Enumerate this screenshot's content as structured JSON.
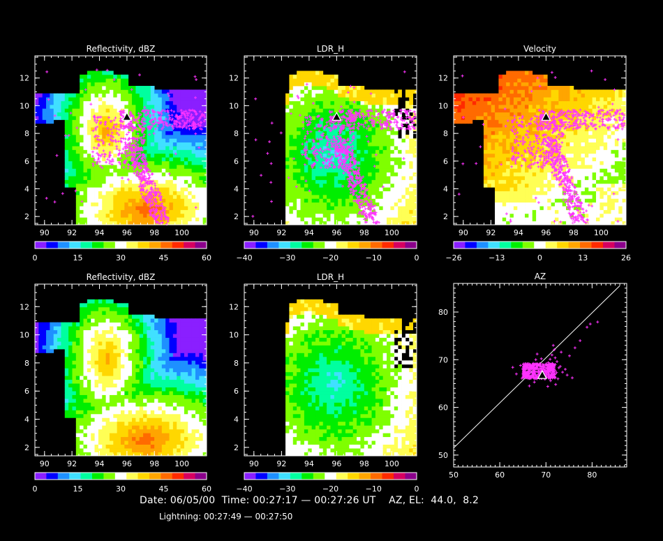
{
  "footer": {
    "date_line": "Date: 06/05/00  Time: 00:27:17 — 00:27:26 UT    AZ, EL:  44.0,  8.2",
    "lightning_line": "Lightning: 00:27:49 — 00:27:50"
  },
  "colors": {
    "background": "#000000",
    "axes": "#ffffff",
    "lightning": "#ff33ff",
    "colorbar_scale": [
      "#8a1fff",
      "#0000ff",
      "#1e90ff",
      "#40e0ff",
      "#00ff9f",
      "#00ee00",
      "#7fff00",
      "#ffffff",
      "#ffff55",
      "#ffd700",
      "#ffa500",
      "#ff6a00",
      "#ff2a00",
      "#d60060",
      "#8b008b"
    ]
  },
  "chart_data": [
    {
      "id": "reflectivity-top",
      "type": "heatmap",
      "title": "Reflectivity, dBZ",
      "xticks": [
        90,
        92,
        94,
        96,
        98,
        100
      ],
      "yticks": [
        2,
        4,
        6,
        8,
        10,
        12
      ],
      "xlim": [
        89.3,
        101.8
      ],
      "ylim": [
        1.4,
        13.6
      ],
      "colorbar": {
        "ticks": [
          "0",
          "15",
          "30",
          "45",
          "60"
        ]
      },
      "lightning_overlay": true,
      "station_marker": {
        "x": 96,
        "y": 9.2
      }
    },
    {
      "id": "ldr-top",
      "type": "heatmap",
      "title": "LDR_H",
      "xticks": [
        90,
        92,
        94,
        96,
        98,
        100
      ],
      "yticks": [
        2,
        4,
        6,
        8,
        10,
        12
      ],
      "xlim": [
        89.3,
        101.8
      ],
      "ylim": [
        1.4,
        13.6
      ],
      "colorbar": {
        "ticks": [
          "−40",
          "−30",
          "−20",
          "−10",
          "0"
        ]
      },
      "lightning_overlay": true,
      "station_marker": {
        "x": 96,
        "y": 9.2
      }
    },
    {
      "id": "velocity-top",
      "type": "heatmap",
      "title": "Velocity",
      "xticks": [
        90,
        92,
        94,
        96,
        98,
        100
      ],
      "yticks": [
        2,
        4,
        6,
        8,
        10,
        12
      ],
      "xlim": [
        89.3,
        101.8
      ],
      "ylim": [
        1.4,
        13.6
      ],
      "colorbar": {
        "ticks": [
          "−26",
          "−13",
          "0",
          "13",
          "26"
        ]
      },
      "lightning_overlay": true,
      "station_marker": {
        "x": 96,
        "y": 9.2
      }
    },
    {
      "id": "reflectivity-bottom",
      "type": "heatmap",
      "title": "Reflectivity, dBZ",
      "xticks": [
        90,
        92,
        94,
        96,
        98,
        100
      ],
      "yticks": [
        2,
        4,
        6,
        8,
        10,
        12
      ],
      "xlim": [
        89.3,
        101.8
      ],
      "ylim": [
        1.4,
        13.6
      ],
      "colorbar": {
        "ticks": [
          "0",
          "15",
          "30",
          "45",
          "60"
        ]
      },
      "lightning_overlay": false
    },
    {
      "id": "ldr-bottom",
      "type": "heatmap",
      "title": "LDR_H",
      "xticks": [
        90,
        92,
        94,
        96,
        98,
        100
      ],
      "yticks": [
        2,
        4,
        6,
        8,
        10,
        12
      ],
      "xlim": [
        89.3,
        101.8
      ],
      "ylim": [
        1.4,
        13.6
      ],
      "colorbar": {
        "ticks": [
          "−40",
          "−30",
          "−20",
          "−10",
          "0"
        ]
      },
      "lightning_overlay": false
    },
    {
      "id": "az-scatter",
      "type": "scatter",
      "title": "AZ",
      "xticks": [
        50,
        60,
        70,
        80
      ],
      "yticks": [
        50,
        60,
        70,
        80
      ],
      "xlim": [
        50,
        87.5
      ],
      "ylim": [
        47.5,
        86
      ],
      "reference_line": [
        [
          50,
          51.5
        ],
        [
          86,
          85.5
        ]
      ],
      "station_marker": {
        "x": 69.2,
        "y": 66.8
      },
      "points": [
        [
          64.5,
          68.8
        ],
        [
          65.2,
          68.2
        ],
        [
          65.8,
          68.6
        ],
        [
          66.3,
          67.9
        ],
        [
          66.9,
          68.4
        ],
        [
          67.4,
          67.6
        ],
        [
          67.9,
          68.1
        ],
        [
          68.3,
          67.3
        ],
        [
          68.8,
          66.7
        ],
        [
          69.3,
          67.9
        ],
        [
          69.7,
          67.1
        ],
        [
          70.2,
          66.4
        ],
        [
          70.6,
          67.5
        ],
        [
          71.1,
          66.8
        ],
        [
          71.5,
          67.9
        ],
        [
          71.9,
          66.2
        ],
        [
          72.3,
          67.3
        ],
        [
          72.8,
          68.3
        ],
        [
          71.4,
          69.2
        ],
        [
          70.9,
          70.1
        ],
        [
          71.3,
          71.0
        ],
        [
          71.8,
          72.1
        ],
        [
          71.6,
          73.0
        ],
        [
          72.4,
          69.6
        ],
        [
          73.1,
          68.6
        ],
        [
          73.6,
          67.4
        ],
        [
          72.6,
          66.0
        ],
        [
          71.0,
          65.6
        ],
        [
          69.8,
          65.9
        ],
        [
          68.5,
          66.3
        ],
        [
          67.2,
          66.8
        ],
        [
          66.0,
          67.4
        ],
        [
          65.4,
          67.9
        ],
        [
          66.6,
          69.0
        ],
        [
          67.6,
          69.1
        ],
        [
          68.7,
          68.9
        ],
        [
          69.6,
          68.9
        ],
        [
          70.5,
          69.4
        ],
        [
          69.0,
          70.2
        ],
        [
          67.8,
          70.0
        ],
        [
          72.0,
          70.4
        ],
        [
          74.2,
          68.0
        ],
        [
          75.1,
          70.8
        ],
        [
          76.3,
          72.5
        ],
        [
          77.4,
          74.0
        ],
        [
          78.9,
          76.8
        ],
        [
          79.6,
          77.5
        ],
        [
          81.2,
          77.9
        ],
        [
          75.7,
          66.2
        ],
        [
          63.6,
          67.0
        ],
        [
          64.8,
          66.1
        ],
        [
          66.4,
          64.5
        ],
        [
          67.5,
          65.3
        ],
        [
          70.4,
          64.4
        ],
        [
          72.1,
          64.8
        ],
        [
          62.8,
          68.4
        ],
        [
          68.1,
          71.2
        ],
        [
          73.3,
          71.6
        ],
        [
          74.6,
          66.8
        ],
        [
          65.9,
          66.5
        ]
      ]
    }
  ]
}
